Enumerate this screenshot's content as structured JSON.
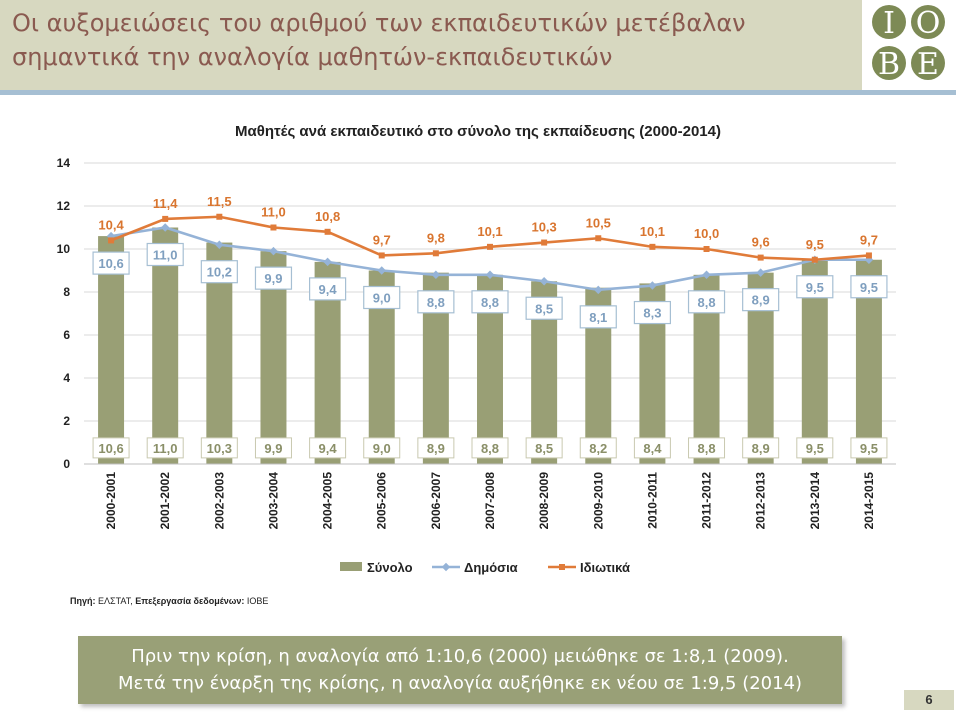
{
  "header": {
    "title_line1": "Οι αυξομειώσεις του αριθμού των εκπαιδευτικών μετέβαλαν",
    "title_line2": "σημαντικά την αναλογία μαθητών-εκπαιδευτικών",
    "background_color": "#d7d8c0",
    "title_color": "#8a5a50",
    "logo_letters": [
      "I",
      "O",
      "B",
      "E"
    ],
    "logo_color": "#7d8a55"
  },
  "chart_data": {
    "type": "bar",
    "title": "Μαθητές ανά εκπαιδευτικό στο σύνολο της εκπαίδευσης (2000-2014)",
    "categories": [
      "2000-2001",
      "2001-2002",
      "2002-2003",
      "2003-2004",
      "2004-2005",
      "2005-2006",
      "2006-2007",
      "2007-2008",
      "2008-2009",
      "2009-2010",
      "2010-2011",
      "2011-2012",
      "2012-2013",
      "2013-2014",
      "2014-2015"
    ],
    "ylim": [
      0,
      14
    ],
    "yticks": [
      "0",
      "2",
      "4",
      "6",
      "8",
      "10",
      "12",
      "14"
    ],
    "grid": true,
    "legend_position": "bottom",
    "series": [
      {
        "name": "Σύνολο",
        "kind": "bar",
        "color": "#999f75",
        "values": [
          10.6,
          11.0,
          10.3,
          9.9,
          9.4,
          9.0,
          8.9,
          8.8,
          8.5,
          8.2,
          8.4,
          8.8,
          8.9,
          9.5,
          9.5
        ],
        "labels": [
          "10,6",
          "11,0",
          "10,3",
          "9,9",
          "9,4",
          "9,0",
          "8,9",
          "8,8",
          "8,5",
          "8,2",
          "8,4",
          "8,8",
          "8,9",
          "9,5",
          "9,5"
        ]
      },
      {
        "name": "Δημόσια",
        "kind": "line",
        "color": "#95b3d7",
        "values": [
          10.6,
          11.0,
          10.2,
          9.9,
          9.4,
          9.0,
          8.8,
          8.8,
          8.5,
          8.1,
          8.3,
          8.8,
          8.9,
          9.5,
          9.5
        ],
        "labels": [
          "10,6",
          "11,0",
          "10,2",
          "9,9",
          "9,4",
          "9,0",
          "8,8",
          "8,8",
          "8,5",
          "8,1",
          "8,3",
          "8,8",
          "8,9",
          "9,5",
          "9,5"
        ]
      },
      {
        "name": "Ιδιωτικά",
        "kind": "line",
        "color": "#e07b39",
        "values": [
          10.4,
          11.4,
          11.5,
          11.0,
          10.8,
          9.7,
          9.8,
          10.1,
          10.3,
          10.5,
          10.1,
          10.0,
          9.6,
          9.5,
          9.7
        ],
        "labels": [
          "10,4",
          "11,4",
          "11,5",
          "11,0",
          "10,8",
          "9,7",
          "9,8",
          "10,1",
          "10,3",
          "10,5",
          "10,1",
          "10,0",
          "9,6",
          "9,5",
          "9,7"
        ]
      }
    ]
  },
  "source": {
    "label": "Πηγή:",
    "source_value": " ΕΛΣΤΑΤ, ",
    "processing_label": "Επεξεργασία δεδομένων:",
    "processing_value": " ΙΟΒΕ"
  },
  "note": {
    "line1": "Πριν την κρίση, η αναλογία από 1:10,6 (2000) μειώθηκε σε 1:8,1 (2009).",
    "line2": "Μετά την έναρξη της κρίσης, η αναλογία αυξήθηκε εκ νέου σε 1:9,5 (2014)",
    "background_color": "#99a077"
  },
  "page_number": "6"
}
